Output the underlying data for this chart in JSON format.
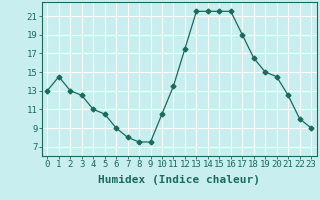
{
  "x": [
    0,
    1,
    2,
    3,
    4,
    5,
    6,
    7,
    8,
    9,
    10,
    11,
    12,
    13,
    14,
    15,
    16,
    17,
    18,
    19,
    20,
    21,
    22,
    23
  ],
  "y": [
    13,
    14.5,
    13,
    12.5,
    11,
    10.5,
    9,
    8,
    7.5,
    7.5,
    10.5,
    13.5,
    17.5,
    21.5,
    21.5,
    21.5,
    21.5,
    19,
    16.5,
    15,
    14.5,
    12.5,
    10,
    9
  ],
  "xlabel": "Humidex (Indice chaleur)",
  "ylim": [
    6,
    22.5
  ],
  "xlim": [
    -0.5,
    23.5
  ],
  "yticks": [
    7,
    9,
    11,
    13,
    15,
    17,
    19,
    21
  ],
  "xticks": [
    0,
    1,
    2,
    3,
    4,
    5,
    6,
    7,
    8,
    9,
    10,
    11,
    12,
    13,
    14,
    15,
    16,
    17,
    18,
    19,
    20,
    21,
    22,
    23
  ],
  "line_color": "#1a6b5c",
  "marker": "D",
  "marker_size": 2.5,
  "bg_color": "#c8eef0",
  "grid_color": "#ffffff",
  "tick_label_fontsize": 6.5,
  "xlabel_fontsize": 8
}
